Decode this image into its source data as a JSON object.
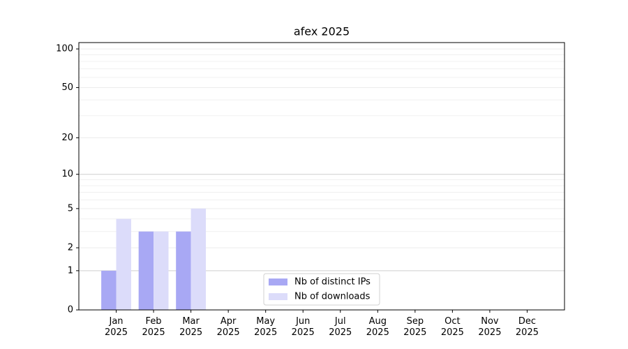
{
  "chart_data": {
    "type": "bar",
    "title": "afex 2025",
    "categories": [
      "Jan\n2025",
      "Feb\n2025",
      "Mar\n2025",
      "Apr\n2025",
      "May\n2025",
      "Jun\n2025",
      "Jul\n2025",
      "Aug\n2025",
      "Sep\n2025",
      "Oct\n2025",
      "Nov\n2025",
      "Dec\n2025"
    ],
    "series": [
      {
        "name": "Nb of distinct IPs",
        "color": "#a8a8f4",
        "values": [
          1,
          3,
          3,
          0,
          0,
          0,
          0,
          0,
          0,
          0,
          0,
          0
        ]
      },
      {
        "name": "Nb of downloads",
        "color": "#dcdcfa",
        "values": [
          4,
          3,
          5,
          0,
          0,
          0,
          0,
          0,
          0,
          0,
          0,
          0
        ]
      }
    ],
    "yscale": "log1p",
    "ylim": [
      0,
      112
    ],
    "yticks": [
      0,
      1,
      2,
      5,
      10,
      20,
      50,
      100
    ],
    "yminorticks": [
      3,
      4,
      6,
      7,
      8,
      9,
      30,
      40,
      60,
      70,
      80,
      90
    ],
    "grid": true,
    "legend": "lower center"
  }
}
